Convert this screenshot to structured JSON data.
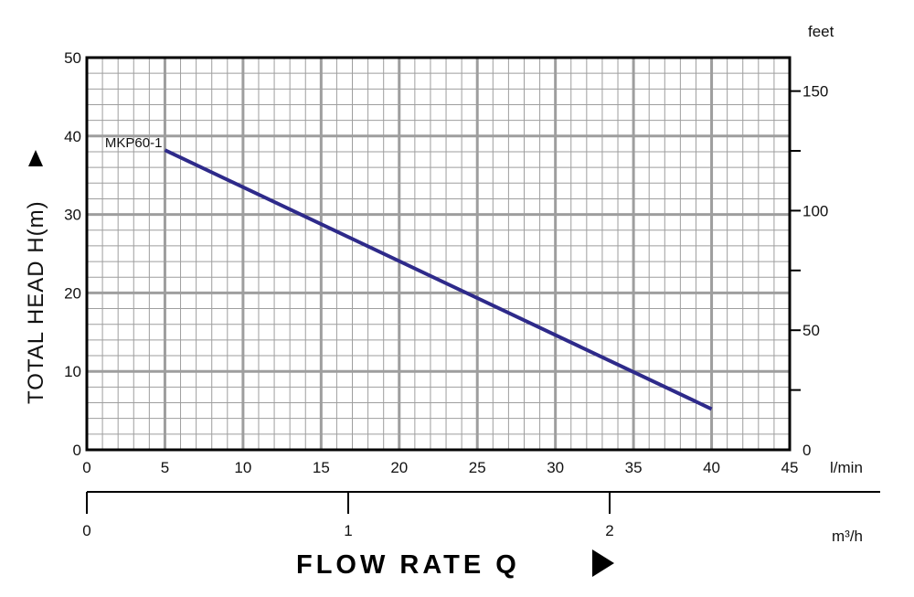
{
  "chart_data": {
    "type": "line",
    "series": [
      {
        "name": "MKP60-1",
        "x": [
          5,
          40
        ],
        "y": [
          38.2,
          5.2
        ]
      }
    ],
    "xlabel": "FLOW  RATE Q",
    "ylabel": "TOTAL HEAD H(m)",
    "xlim": [
      0,
      45
    ],
    "ylim": [
      0,
      50
    ],
    "x_ticks": [
      "0",
      "5",
      "10",
      "15",
      "20",
      "25",
      "30",
      "35",
      "40",
      "45"
    ],
    "y_ticks": [
      "0",
      "10",
      "20",
      "30",
      "40",
      "50"
    ],
    "x_unit": "l/min",
    "secondary_y": {
      "unit": "feet",
      "ticks": [
        "0",
        "50",
        "100",
        "150"
      ],
      "range": [
        0,
        164
      ]
    },
    "secondary_x": {
      "unit": "m³/h",
      "ticks": [
        "0",
        "1",
        "2"
      ]
    },
    "grid": true,
    "colors": {
      "series": "#2e2a8a",
      "grid": "#9e9e9e",
      "frame": "#000000"
    }
  }
}
